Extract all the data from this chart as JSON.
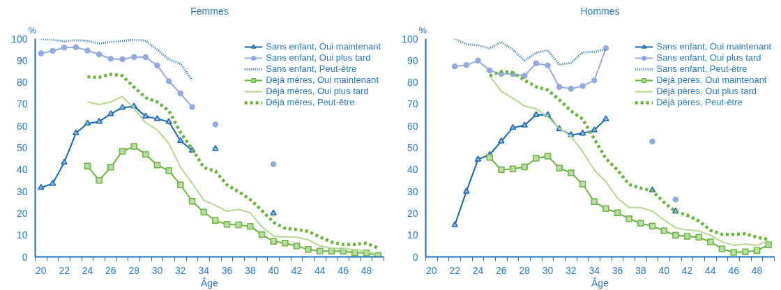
{
  "chart_data": [
    {
      "type": "line",
      "title": "Femmes",
      "xlabel": "Âge",
      "ylabel": "%",
      "xlim": [
        19.5,
        49.5
      ],
      "xticks": [
        20,
        22,
        24,
        26,
        28,
        30,
        32,
        34,
        36,
        38,
        40,
        42,
        44,
        46,
        48
      ],
      "ylim": [
        0,
        100
      ],
      "yticks": [
        0,
        10,
        20,
        30,
        40,
        50,
        60,
        70,
        80,
        90,
        100
      ],
      "grid": false,
      "legend": "top right",
      "x": [
        20,
        21,
        22,
        23,
        24,
        25,
        26,
        27,
        28,
        29,
        30,
        31,
        32,
        33,
        34,
        35,
        36,
        37,
        38,
        39,
        40,
        41,
        42,
        43,
        44,
        45,
        46,
        47,
        48,
        49
      ],
      "series": [
        {
          "name": "Sans enfant, Oui maintenant",
          "color": "#1565b0",
          "marker": "triangle",
          "line_style": "solid",
          "values": [
            31.7,
            33.6,
            43.3,
            56.7,
            61.2,
            62.0,
            65.5,
            68.4,
            69.0,
            64.4,
            63.3,
            61.9,
            53.2,
            48.8,
            null,
            49.5,
            null,
            null,
            null,
            null,
            20,
            null,
            null,
            null,
            null,
            null,
            null,
            null,
            null,
            null
          ]
        },
        {
          "name": "Sans enfant, Oui plus tard",
          "color": "#94a9dc",
          "marker": "circle",
          "line_style": "solid",
          "values": [
            93.3,
            94.4,
            95.9,
            96.1,
            94.6,
            92.8,
            90.8,
            90.6,
            91.6,
            91.5,
            87.7,
            80.5,
            74.9,
            68.7,
            null,
            60.7,
            null,
            null,
            null,
            null,
            42.5,
            null,
            null,
            null,
            null,
            null,
            null,
            null,
            null,
            null
          ]
        },
        {
          "name": "Sans enfant, Peut-être",
          "color": "#1565b0",
          "marker": "none",
          "line_style": "dotted",
          "values": [
            100,
            99.5,
            98.8,
            99.3,
            99,
            97.8,
            98.5,
            99,
            99.5,
            99,
            95,
            90.5,
            88.5,
            81,
            null,
            null,
            null,
            null,
            null,
            null,
            null,
            null,
            null,
            null,
            null,
            null,
            null,
            null,
            null,
            null
          ]
        },
        {
          "name": "Déjà mères, Oui maintenant",
          "color": "#6ab23e",
          "marker": "square",
          "line_style": "solid",
          "values": [
            null,
            null,
            null,
            null,
            41.6,
            35.1,
            41.1,
            48.4,
            50.6,
            47.0,
            42.1,
            39.5,
            33.0,
            25.5,
            20.5,
            16.7,
            14.9,
            14.7,
            14.0,
            10.2,
            7.1,
            6.3,
            5.0,
            3.4,
            2.6,
            2.6,
            2.6,
            1.9,
            1.8,
            0.6
          ]
        },
        {
          "name": "Déjà mères, Oui plus tard",
          "color": "#b3d88f",
          "marker": "none",
          "line_style": "solid",
          "values": [
            null,
            null,
            null,
            null,
            71,
            69.8,
            71,
            73.5,
            68,
            61.5,
            58.2,
            52,
            41,
            33.8,
            26,
            23.6,
            20.9,
            21.8,
            20.2,
            13.8,
            9.5,
            9.1,
            9.0,
            7.8,
            5.0,
            4.0,
            3.8,
            3.3,
            2.6,
            0.8
          ]
        },
        {
          "name": "Déjà mères, Peut-être",
          "color": "#6ab23e",
          "marker": "none",
          "line_style": "dashed",
          "values": [
            null,
            null,
            null,
            null,
            82.5,
            82.3,
            83.7,
            83,
            77.8,
            73,
            71,
            67,
            57,
            49.5,
            41,
            39.3,
            33.0,
            29.9,
            26.3,
            21.2,
            15.9,
            13.1,
            12.5,
            11.7,
            9.1,
            6.8,
            5.7,
            5.7,
            6.3,
            4.0
          ]
        }
      ]
    },
    {
      "type": "line",
      "title": "Hommes",
      "xlabel": "Âge",
      "ylabel": "%",
      "xlim": [
        19.5,
        49.5
      ],
      "xticks": [
        20,
        22,
        24,
        26,
        28,
        30,
        32,
        34,
        36,
        38,
        40,
        42,
        44,
        46,
        48
      ],
      "ylim": [
        0,
        100
      ],
      "yticks": [
        0,
        10,
        20,
        30,
        40,
        50,
        60,
        70,
        80,
        90,
        100
      ],
      "grid": false,
      "legend": "top right",
      "x": [
        22,
        23,
        24,
        25,
        26,
        27,
        28,
        29,
        30,
        31,
        32,
        33,
        34,
        35,
        36,
        37,
        38,
        39,
        40,
        41,
        42,
        43,
        44,
        45,
        46,
        47,
        48,
        49
      ],
      "series": [
        {
          "name": "Sans enfant, Oui maintenant",
          "color": "#1565b0",
          "marker": "triangle",
          "line_style": "solid",
          "values": [
            14.6,
            30.0,
            44.7,
            46.8,
            53.0,
            59.2,
            60.3,
            65.1,
            65.1,
            58.6,
            55.9,
            56.6,
            58.1,
            63.2,
            null,
            null,
            null,
            30.6,
            null,
            20.9,
            null,
            null,
            null,
            null,
            null,
            null,
            null,
            null
          ]
        },
        {
          "name": "Sans enfant, Oui plus tard",
          "color": "#94a9dc",
          "marker": "circle",
          "line_style": "solid",
          "values": [
            87.3,
            87.9,
            89.9,
            85.5,
            83.9,
            83.8,
            83.0,
            88.7,
            87.7,
            77.9,
            77.1,
            78.3,
            80.9,
            95.6,
            null,
            null,
            null,
            52.9,
            null,
            26.3,
            null,
            null,
            null,
            null,
            null,
            null,
            null,
            null
          ]
        },
        {
          "name": "Sans enfant, Peut-être",
          "color": "#1565b0",
          "marker": "none",
          "line_style": "dotted",
          "values": [
            100,
            97.5,
            97,
            95.5,
            98.5,
            95,
            90,
            93.5,
            94.8,
            88,
            89,
            93.7,
            94,
            95,
            null,
            null,
            null,
            null,
            null,
            null,
            null,
            null,
            null,
            null,
            null,
            null,
            null,
            null
          ]
        },
        {
          "name": "Déjà pères, Oui maintenant",
          "color": "#6ab23e",
          "marker": "square",
          "line_style": "solid",
          "values": [
            null,
            null,
            null,
            45.6,
            39.9,
            40.3,
            41.2,
            45.2,
            46.2,
            40.7,
            38.5,
            33.4,
            25.3,
            22.1,
            20.2,
            17.5,
            15.4,
            14.1,
            12.0,
            9.9,
            9.4,
            9.0,
            6.9,
            3.7,
            2.1,
            2.3,
            2.9,
            5.5
          ]
        },
        {
          "name": "Déjà pères, Oui plus tard",
          "color": "#b3d88f",
          "marker": "none",
          "line_style": "solid",
          "values": [
            null,
            null,
            null,
            83,
            75.9,
            72.7,
            69.1,
            67.9,
            64.2,
            58.9,
            55.2,
            48.3,
            39.8,
            34.5,
            26.9,
            22.6,
            22.6,
            20.9,
            17.0,
            13.3,
            12.4,
            11.9,
            9.9,
            6.9,
            5.3,
            5.9,
            5.3,
            7.5
          ]
        },
        {
          "name": "Déjà pères, Peut-être",
          "color": "#6ab23e",
          "marker": "none",
          "line_style": "dashed",
          "values": [
            null,
            null,
            null,
            83,
            85,
            84.5,
            81,
            78,
            76.5,
            72,
            66.9,
            63.2,
            54.1,
            45.1,
            39.8,
            33.2,
            31.5,
            30.3,
            25.0,
            20.7,
            19.1,
            16.5,
            12.2,
            10.3,
            10.3,
            10.6,
            9.0,
            8.0
          ]
        }
      ]
    }
  ]
}
